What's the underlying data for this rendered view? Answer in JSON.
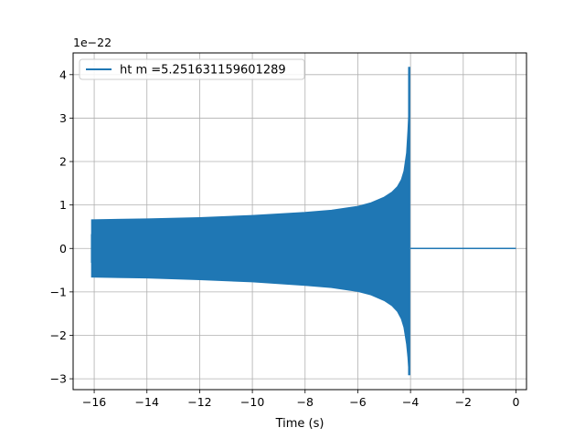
{
  "chart_data": {
    "type": "line",
    "xlabel": "Time (s)",
    "ylabel": "",
    "y_scale_multiplier": "1e−22",
    "xlim": [
      -16.8,
      0.4
    ],
    "ylim": [
      -3.25,
      4.5
    ],
    "x_ticks": [
      -16,
      -14,
      -12,
      -10,
      -8,
      -6,
      -4,
      -2,
      0
    ],
    "x_tick_labels": [
      "−16",
      "−14",
      "−12",
      "−10",
      "−8",
      "−6",
      "−4",
      "−2",
      "0"
    ],
    "y_ticks": [
      -3,
      -2,
      -1,
      0,
      1,
      2,
      3,
      4
    ],
    "y_tick_labels": [
      "−3",
      "−2",
      "−1",
      "0",
      "1",
      "2",
      "3",
      "4"
    ],
    "grid": true,
    "legend_position": "top-left",
    "series": [
      {
        "name": "ht m =5.251631159601289",
        "color": "#1f77b4",
        "fill_start": -16.1,
        "chirp_end": -4.05,
        "x": [
          -16.1,
          -14,
          -12,
          -10,
          -8,
          -7,
          -6,
          -5.5,
          -5,
          -4.7,
          -4.5,
          -4.35,
          -4.25,
          -4.15,
          -4.1,
          -4.06
        ],
        "upper": [
          0.66,
          0.68,
          0.71,
          0.76,
          0.83,
          0.88,
          0.97,
          1.05,
          1.18,
          1.3,
          1.42,
          1.58,
          1.78,
          2.2,
          2.7,
          3.2
        ],
        "lower": [
          -0.66,
          -0.68,
          -0.72,
          -0.77,
          -0.85,
          -0.9,
          -0.99,
          -1.07,
          -1.2,
          -1.32,
          -1.45,
          -1.62,
          -1.82,
          -2.2,
          -2.5,
          -2.85
        ],
        "spike_max": 4.18,
        "spike_min": -2.92,
        "tail_x": [
          -4.0,
          0.0
        ],
        "tail_y": [
          0.0,
          0.0
        ]
      }
    ]
  }
}
